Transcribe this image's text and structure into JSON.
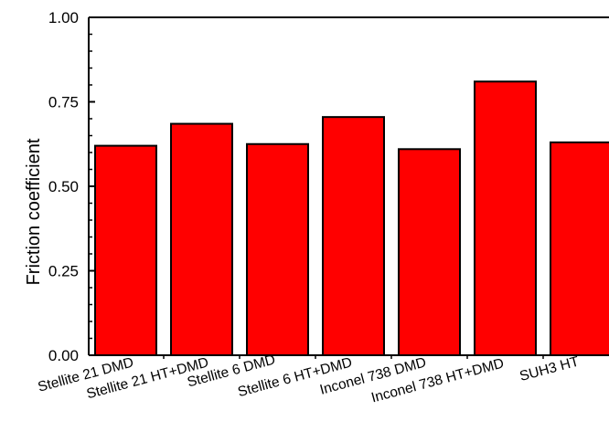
{
  "chart_data": {
    "type": "bar",
    "title": "",
    "xlabel": "",
    "ylabel": "Friction coefficient",
    "ylim": [
      0,
      1
    ],
    "yticks": [
      "0.00",
      "0.25",
      "0.50",
      "0.75",
      "1.00"
    ],
    "yticks_values": [
      0,
      0.25,
      0.5,
      0.75,
      1.0
    ],
    "grid": false,
    "legend": "none",
    "bar_color": "#ff0000",
    "categories": [
      "Stellite 21 DMD",
      "Stellite 21 HT+DMD",
      "Stellite 6 DMD",
      "Stellite 6 HT+DMD",
      "Inconel 738 DMD",
      "Inconel 738 HT+DMD",
      "SUH3 HT"
    ],
    "values": [
      0.62,
      0.685,
      0.625,
      0.705,
      0.61,
      0.81,
      0.63
    ]
  }
}
